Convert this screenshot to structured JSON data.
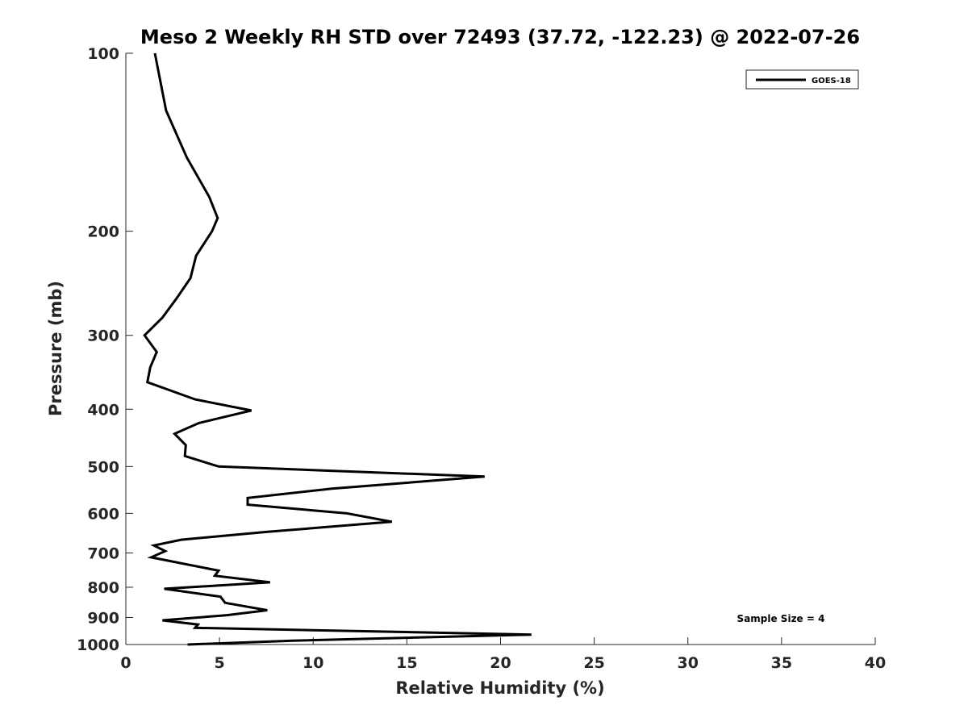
{
  "chart_data": {
    "type": "line",
    "title": "Meso 2 Weekly RH STD over 72493 (37.72, -122.23) @ 2022-07-26",
    "xlabel": "Relative Humidity (%)",
    "ylabel": "Pressure (mb)",
    "xlim": [
      0,
      40
    ],
    "ylim": [
      100,
      1000
    ],
    "yscale": "log",
    "yreversed": true,
    "xticks": [
      0,
      5,
      10,
      15,
      20,
      25,
      30,
      35,
      40
    ],
    "yticks": [
      100,
      200,
      300,
      400,
      500,
      600,
      700,
      800,
      900,
      1000
    ],
    "grid": false,
    "legend_position": "top-right",
    "annotation": "Sample Size = 4",
    "series": [
      {
        "name": "GOES-18",
        "color": "#000000",
        "points": [
          [
            1.55,
            100
          ],
          [
            2.15,
            125
          ],
          [
            3.25,
            150
          ],
          [
            4.45,
            175
          ],
          [
            4.9,
            190
          ],
          [
            4.6,
            200
          ],
          [
            3.75,
            220
          ],
          [
            3.45,
            240
          ],
          [
            2.7,
            260
          ],
          [
            1.95,
            280
          ],
          [
            1.0,
            300
          ],
          [
            1.65,
            320
          ],
          [
            1.3,
            340
          ],
          [
            1.15,
            360
          ],
          [
            3.7,
            385
          ],
          [
            6.7,
            402
          ],
          [
            3.9,
            422
          ],
          [
            2.6,
            440
          ],
          [
            3.2,
            460
          ],
          [
            3.15,
            480
          ],
          [
            4.95,
            500
          ],
          [
            19.15,
            520
          ],
          [
            11.0,
            545
          ],
          [
            6.5,
            565
          ],
          [
            6.5,
            580
          ],
          [
            11.8,
            600
          ],
          [
            14.2,
            620
          ],
          [
            7.5,
            645
          ],
          [
            2.95,
            665
          ],
          [
            1.5,
            680
          ],
          [
            2.1,
            695
          ],
          [
            1.35,
            712
          ],
          [
            4.95,
            750
          ],
          [
            4.75,
            765
          ],
          [
            7.7,
            785
          ],
          [
            2.05,
            805
          ],
          [
            5.05,
            830
          ],
          [
            5.3,
            850
          ],
          [
            7.55,
            875
          ],
          [
            5.4,
            892
          ],
          [
            1.95,
            910
          ],
          [
            3.85,
            925
          ],
          [
            3.7,
            937
          ],
          [
            21.65,
            962
          ],
          [
            8.9,
            985
          ],
          [
            3.3,
            1000
          ]
        ]
      }
    ]
  }
}
